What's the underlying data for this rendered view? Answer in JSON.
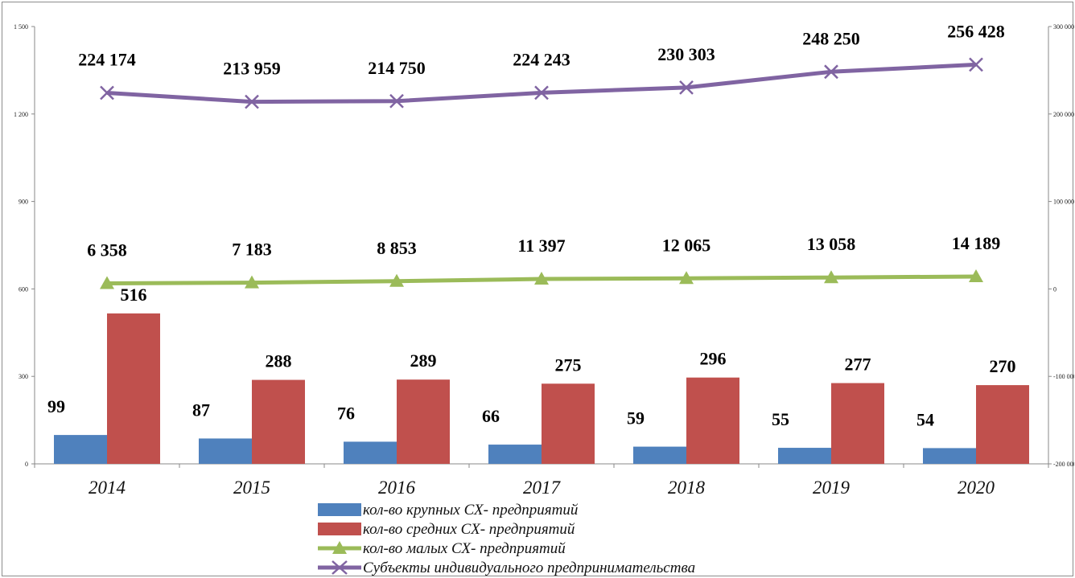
{
  "chart_data": {
    "type": "bar",
    "categories": [
      "2014",
      "2015",
      "2016",
      "2017",
      "2018",
      "2019",
      "2020"
    ],
    "y_left": {
      "ylim": [
        0,
        1500
      ],
      "ticks": [
        0,
        300,
        600,
        900,
        1200,
        1500
      ],
      "tick_labels": [
        "0",
        "300",
        "600",
        "900",
        "1 200",
        "1 500"
      ]
    },
    "y_right": {
      "ylim": [
        -200000,
        300000
      ],
      "ticks": [
        -200000,
        -100000,
        0,
        100000,
        200000,
        300000
      ],
      "tick_labels": [
        "-200 000",
        "-100 000",
        "0",
        "100 000",
        "200 000",
        "300 000"
      ]
    },
    "grid": false,
    "legend_position": "bottom",
    "series": [
      {
        "name": "кол-во крупных СХ- предприятий",
        "kind": "bar",
        "axis": "left",
        "color": "#4f81bd",
        "values": [
          99,
          87,
          76,
          66,
          59,
          55,
          54
        ],
        "labels": [
          "99",
          "87",
          "76",
          "66",
          "59",
          "55",
          "54"
        ]
      },
      {
        "name": "кол-во средних СХ- предприятий",
        "kind": "bar",
        "axis": "left",
        "color": "#c0504d",
        "values": [
          516,
          288,
          289,
          275,
          296,
          277,
          270
        ],
        "labels": [
          "516",
          "288",
          "289",
          "275",
          "296",
          "277",
          "270"
        ]
      },
      {
        "name": "кол-во малых СХ- предприятий",
        "kind": "line",
        "axis": "right",
        "color": "#9bbb59",
        "marker": "triangle",
        "values": [
          6358,
          7183,
          8853,
          11397,
          12065,
          13058,
          14189
        ],
        "labels": [
          "6 358",
          "7 183",
          "8 853",
          "11 397",
          "12 065",
          "13 058",
          "14 189"
        ]
      },
      {
        "name": "Субъекты индивидуального предпринимательства",
        "kind": "line",
        "axis": "right",
        "color": "#8064a2",
        "marker": "x",
        "values": [
          224174,
          213959,
          214750,
          224243,
          230303,
          248250,
          256428
        ],
        "labels": [
          "224 174",
          "213 959",
          "214 750",
          "224 243",
          "230 303",
          "248 250",
          "256 428"
        ]
      }
    ]
  }
}
